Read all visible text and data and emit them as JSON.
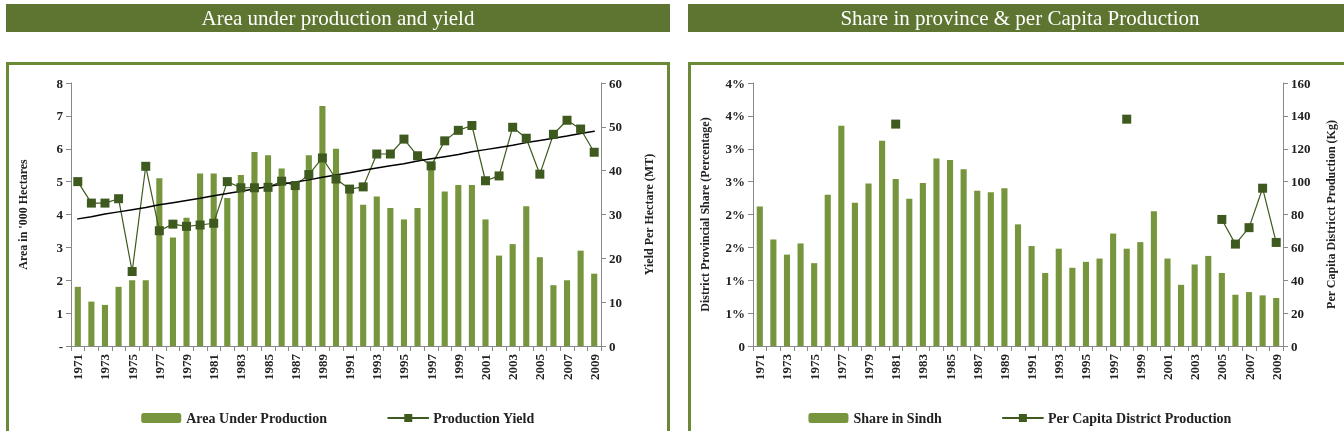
{
  "chart_data": [
    {
      "type": "bar",
      "title": "Area under production and yield",
      "ylabel": "Area in '000 Hectares",
      "y2label": "Yield Per Hectare (MT)",
      "categories": [
        "1971",
        null,
        "1973",
        null,
        "1975",
        null,
        "1977",
        null,
        "1979",
        null,
        "1981",
        null,
        "1983",
        null,
        "1985",
        null,
        "1987",
        null,
        "1989",
        null,
        "1991",
        null,
        "1993",
        null,
        "1995",
        null,
        "1997",
        null,
        "1999",
        null,
        "2001",
        null,
        "2003",
        null,
        "2005",
        null,
        "2007",
        null,
        "2009"
      ],
      "series": [
        {
          "name": "Area Under Production",
          "color": "#77953d",
          "values": [
            1.8,
            1.35,
            1.25,
            1.8,
            2.0,
            2.0,
            5.1,
            3.3,
            3.9,
            5.25,
            5.25,
            4.5,
            5.2,
            5.9,
            5.8,
            5.4,
            4.8,
            5.8,
            7.3,
            6.0,
            4.7,
            4.3,
            4.55,
            4.2,
            3.85,
            4.2,
            5.35,
            4.7,
            4.9,
            4.9,
            3.85,
            2.75,
            3.1,
            4.25,
            2.7,
            1.85,
            2.0,
            2.9,
            2.2
          ]
        },
        {
          "name": "Production Yield",
          "type": "line",
          "axis": "y2",
          "color": "#3e5a1e",
          "values": [
            37.5,
            32.6,
            32.6,
            33.6,
            17,
            41,
            26.3,
            27.8,
            27.3,
            27.6,
            28,
            37.5,
            36.1,
            36.1,
            36.2,
            37.6,
            36.6,
            39.1,
            42.9,
            38.1,
            35.8,
            36.3,
            43.8,
            43.8,
            47.2,
            43.4,
            41.1,
            46.8,
            49.2,
            50.3,
            37.7,
            38.8,
            49.9,
            47.4,
            39.2,
            48.3,
            51.5,
            49.5,
            44.2
          ]
        },
        {
          "type": "line",
          "axis": "y2",
          "color": "#000000",
          "marker": "none",
          "values": [
            29,
            29.5,
            30.1,
            30.6,
            31.1,
            31.6,
            32.2,
            32.7,
            33.2,
            33.7,
            34.3,
            34.8,
            35.3,
            35.8,
            36.4,
            36.9,
            37.4,
            37.9,
            38.5,
            39,
            39.5,
            40.1,
            40.6,
            41.1,
            41.6,
            42.2,
            42.7,
            43.2,
            43.7,
            44.3,
            44.8,
            45.3,
            45.8,
            46.4,
            46.9,
            47.4,
            47.9,
            48.5,
            49
          ]
        }
      ],
      "ylim": [
        0,
        8
      ],
      "yticks": [
        {
          "value": 0,
          "label": "-"
        },
        1,
        2,
        3,
        4,
        5,
        6,
        7,
        8
      ],
      "y2lim": [
        0,
        60
      ],
      "y2ticks": [
        0,
        10,
        20,
        30,
        40,
        50,
        60
      ],
      "marker": "square",
      "line_style": "solid",
      "legend": "bottom",
      "grid": false
    },
    {
      "type": "bar",
      "title": "Share in province & per Capita Production",
      "ylabel": "District Provincial Share (Percentage)",
      "y2label": "Per Capita Districct Production (Kg)",
      "categories": [
        "1971",
        null,
        "1973",
        null,
        "1975",
        null,
        "1977",
        null,
        "1979",
        null,
        "1981",
        null,
        "1983",
        null,
        "1985",
        null,
        "1987",
        null,
        "1989",
        null,
        "1991",
        null,
        "1993",
        null,
        "1995",
        null,
        "1997",
        null,
        "1999",
        null,
        "2001",
        null,
        "2003",
        null,
        "2005",
        null,
        "2007",
        null,
        "2009"
      ],
      "series": [
        {
          "name": "Share in Sindh",
          "color": "#77953d",
          "values": [
            2.12,
            1.62,
            1.39,
            1.56,
            1.26,
            2.3,
            3.35,
            2.18,
            2.47,
            3.12,
            2.54,
            2.24,
            2.48,
            2.85,
            2.83,
            2.69,
            2.36,
            2.34,
            2.4,
            1.85,
            1.52,
            1.11,
            1.48,
            1.19,
            1.28,
            1.33,
            1.71,
            1.48,
            1.58,
            2.05,
            1.33,
            0.93,
            1.24,
            1.37,
            1.11,
            0.78,
            0.82,
            0.77,
            0.73
          ]
        },
        {
          "name": "Per Capita District Production",
          "type": "line",
          "axis": "y2",
          "color": "#3e5a1e",
          "values": [
            null,
            null,
            null,
            null,
            null,
            null,
            null,
            null,
            null,
            null,
            135,
            null,
            null,
            null,
            null,
            null,
            null,
            null,
            null,
            null,
            null,
            null,
            null,
            null,
            null,
            null,
            null,
            138,
            null,
            null,
            null,
            null,
            null,
            null,
            77,
            62,
            72,
            96,
            63
          ]
        }
      ],
      "ylim": [
        0,
        4
      ],
      "yticks": [
        0,
        {
          "value": 0.5,
          "label": "1%"
        },
        {
          "value": 1,
          "label": "1%"
        },
        {
          "value": 1.5,
          "label": "2%"
        },
        {
          "value": 2,
          "label": "2%"
        },
        {
          "value": 2.5,
          "label": "3%"
        },
        {
          "value": 3,
          "label": "3%"
        },
        {
          "value": 3.5,
          "label": "4%"
        },
        {
          "value": 4,
          "label": "4%"
        }
      ],
      "y2lim": [
        0,
        160
      ],
      "y2ticks": [
        0,
        20,
        40,
        60,
        80,
        100,
        120,
        140,
        160
      ],
      "marker": "square",
      "line_style": "solid",
      "legend": "bottom",
      "grid": false
    }
  ]
}
